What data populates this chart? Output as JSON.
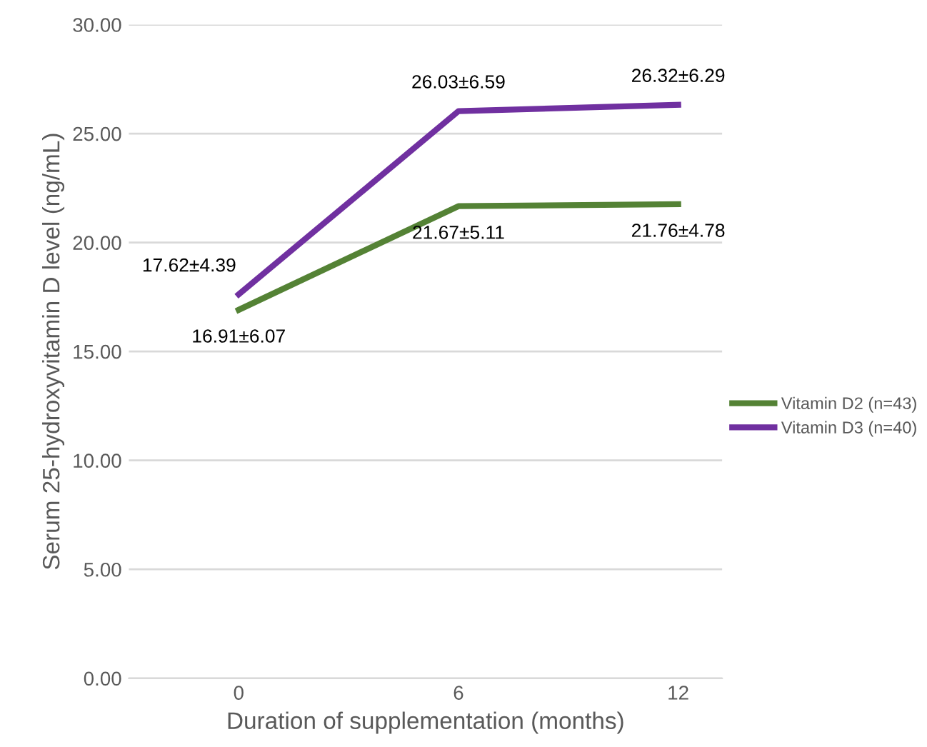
{
  "chart_data": {
    "type": "line",
    "xlabel": "Duration of supplementation (months)",
    "ylabel": "Serum 25-hydroxyvitamin D level (ng/mL)",
    "categories": [
      "0",
      "6",
      "12"
    ],
    "series": [
      {
        "name": "Vitamin D2 (n=43)",
        "color": "#548235",
        "values": [
          16.91,
          21.67,
          21.76
        ],
        "value_labels": [
          "16.91±6.07",
          "21.67±5.11",
          "21.76±4.78"
        ]
      },
      {
        "name": "Vitamin D3 (n=40)",
        "color": "#7030a0",
        "values": [
          17.62,
          26.03,
          26.32
        ],
        "value_labels": [
          "17.62±4.39",
          "26.03±6.59",
          "26.32±6.29"
        ]
      }
    ],
    "ylim": [
      0,
      30
    ],
    "yticks": [
      {
        "value": 0,
        "label": "0.00"
      },
      {
        "value": 5,
        "label": "5.00"
      },
      {
        "value": 10,
        "label": "10.00"
      },
      {
        "value": 15,
        "label": "15.00"
      },
      {
        "value": 20,
        "label": "20.00"
      },
      {
        "value": 25,
        "label": "25.00"
      },
      {
        "value": 30,
        "label": "30.00"
      }
    ],
    "grid": "y",
    "legend": "right",
    "marker": "none",
    "line_style": "solid"
  }
}
